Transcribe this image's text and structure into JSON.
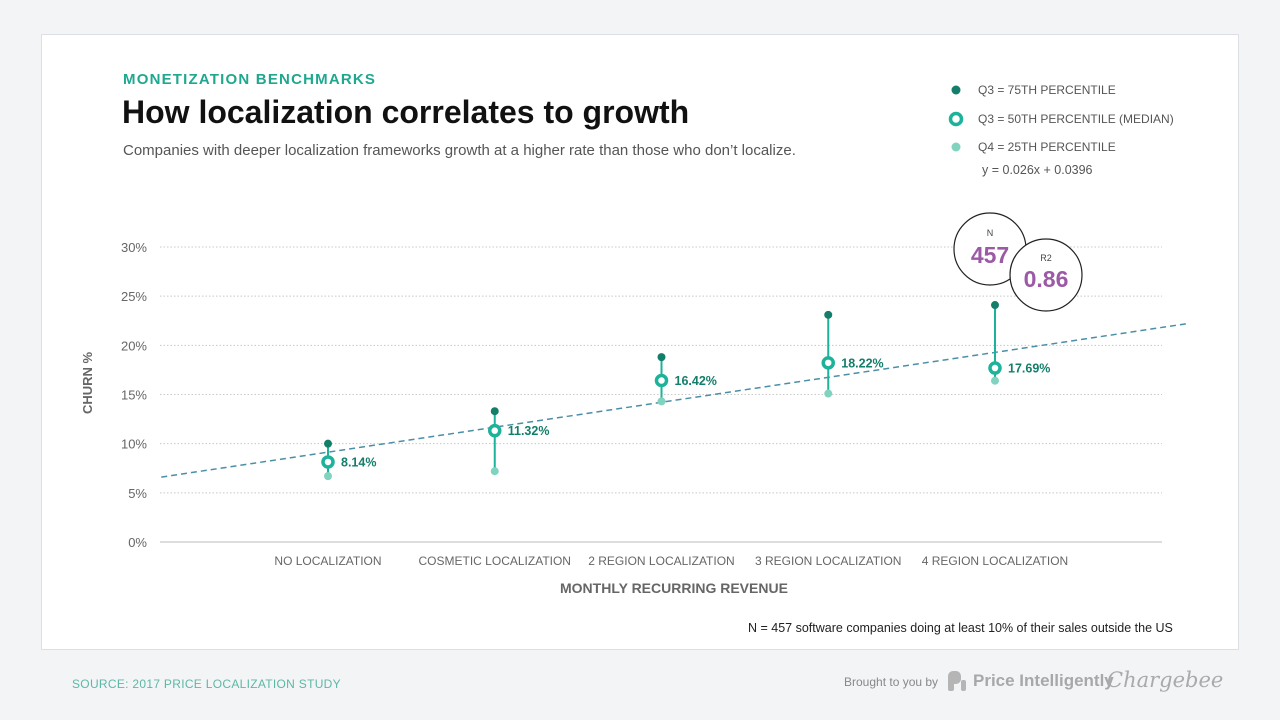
{
  "header": {
    "eyebrow": "MONETIZATION BENCHMARKS",
    "title": "How localization correlates to growth",
    "subtitle": "Companies with deeper localization frameworks growth at a higher rate than those who don’t localize."
  },
  "legend": [
    {
      "label": "Q3 = 75TH PERCENTILE",
      "color": "#137e6a",
      "marker": "filled-dot"
    },
    {
      "label": "Q3 = 50TH PERCENTILE (MEDIAN)",
      "color": "#1db39a",
      "marker": "ring"
    },
    {
      "label": "Q4 = 25TH PERCENTILE",
      "color": "#7fd3bf",
      "marker": "filled-dot"
    }
  ],
  "equation": "y = 0.026x + 0.0396",
  "stats": {
    "n_label": "N",
    "n_value": "457",
    "r2_label": "R2",
    "r2_value": "0.86",
    "value_color": "#9b59a6"
  },
  "chart_data": {
    "type": "scatter",
    "xlabel": "MONTHLY RECURRING REVENUE",
    "ylabel": "CHURN %",
    "ylim": [
      0,
      30
    ],
    "yticks": [
      "0%",
      "5%",
      "10%",
      "15%",
      "20%",
      "25%",
      "30%"
    ],
    "grid": true,
    "categories": [
      "NO LOCALIZATION",
      "COSMETIC LOCALIZATION",
      "2 REGION LOCALIZATION",
      "3 REGION LOCALIZATION",
      "4 REGION LOCALIZATION"
    ],
    "series": [
      {
        "name": "Q3 = 75TH PERCENTILE",
        "values": [
          10.0,
          13.3,
          18.8,
          23.1,
          24.1
        ]
      },
      {
        "name": "Q3 = 50TH PERCENTILE (MEDIAN)",
        "values": [
          8.14,
          11.32,
          16.42,
          18.22,
          17.69
        ],
        "labels": [
          "8.14%",
          "11.32%",
          "16.42%",
          "18.22%",
          "17.69%"
        ]
      },
      {
        "name": "Q4 = 25TH PERCENTILE",
        "values": [
          6.7,
          7.2,
          14.3,
          15.1,
          16.4
        ]
      }
    ],
    "trendline": {
      "style": "dashed",
      "color": "#4a8fa8",
      "start": [
        -1.0,
        6.6
      ],
      "end": [
        5.15,
        22.2
      ]
    }
  },
  "footnote": "N = 457 software companies doing at least 10% of their sales outside the US",
  "footer": {
    "source": "SOURCE: 2017 PRICE LOCALIZATION STUDY",
    "brought": "Brought to you by",
    "brand1": "Price Intelligently",
    "brand2": "Chargebee"
  }
}
